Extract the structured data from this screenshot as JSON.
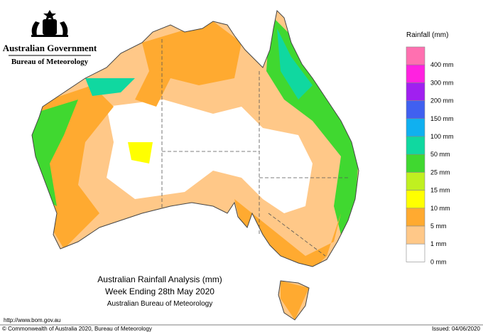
{
  "header": {
    "government": "Australian Government",
    "bureau": "Bureau of Meteorology"
  },
  "legend": {
    "title": "Rainfall (mm)",
    "items": [
      {
        "label": "400 mm",
        "color": "#ff70b0"
      },
      {
        "label": "300 mm",
        "color": "#ff22e0"
      },
      {
        "label": "200 mm",
        "color": "#a020f0"
      },
      {
        "label": "150 mm",
        "color": "#4060f0"
      },
      {
        "label": "100 mm",
        "color": "#10b0f0"
      },
      {
        "label": "50 mm",
        "color": "#10d8a0"
      },
      {
        "label": "25 mm",
        "color": "#40d830"
      },
      {
        "label": "15 mm",
        "color": "#c0f020"
      },
      {
        "label": "10 mm",
        "color": "#ffff00"
      },
      {
        "label": "5 mm",
        "color": "#ffaa30"
      },
      {
        "label": "1 mm",
        "color": "#ffc888"
      },
      {
        "label": "0 mm",
        "color": "#ffffff"
      }
    ]
  },
  "caption": {
    "line1": "Australian Rainfall Analysis (mm)",
    "line2": "Week Ending 28th May 2020",
    "line3": "Australian Bureau of Meteorology"
  },
  "footer": {
    "url": "http://www.bom.gov.au",
    "copyright": "© Commonwealth of Australia 2020, Bureau of Meteorology",
    "issued": "Issued: 04/06/2020"
  }
}
